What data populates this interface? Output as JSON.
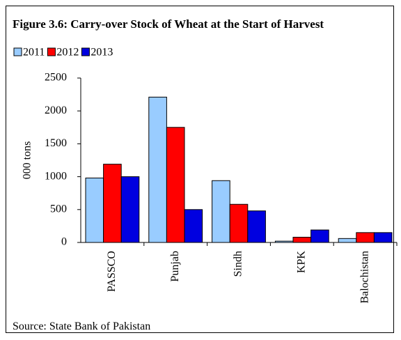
{
  "chart_data": {
    "type": "bar",
    "title": "Figure 3.6: Carry-over Stock of Wheat at the Start of Harvest",
    "ylabel": "000 tons",
    "source": "Source: State Bank of Pakistan",
    "categories": [
      "PASSCO",
      "Punjab",
      "Sindh",
      "KPK",
      "Balochistan"
    ],
    "series": [
      {
        "name": "2011",
        "color": "#99ccff",
        "values": [
          980,
          2210,
          940,
          20,
          60
        ]
      },
      {
        "name": "2012",
        "color": "#ff0000",
        "values": [
          1190,
          1750,
          580,
          80,
          150
        ]
      },
      {
        "name": "2013",
        "color": "#0000e0",
        "values": [
          1000,
          500,
          480,
          190,
          150
        ]
      }
    ],
    "ylim": [
      0,
      2500
    ],
    "yticks": [
      0,
      500,
      1000,
      1500,
      2000,
      2500
    ],
    "grid": false,
    "legend": "top-left"
  }
}
